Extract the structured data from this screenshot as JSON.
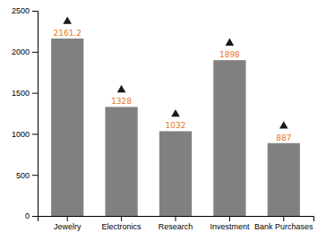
{
  "chart_data": {
    "type": "bar",
    "categories": [
      "Jewelry",
      "Electronics",
      "Research",
      "Investment",
      "Bank Purchases"
    ],
    "values": [
      2161.2,
      1328,
      1032,
      1898,
      887
    ],
    "color": "#808080",
    "marker": "triangle",
    "ylim": [
      0,
      2500
    ],
    "yticks": [
      0,
      500,
      1000,
      1500,
      2000,
      2500
    ],
    "grid": false,
    "data_labels": true
  }
}
